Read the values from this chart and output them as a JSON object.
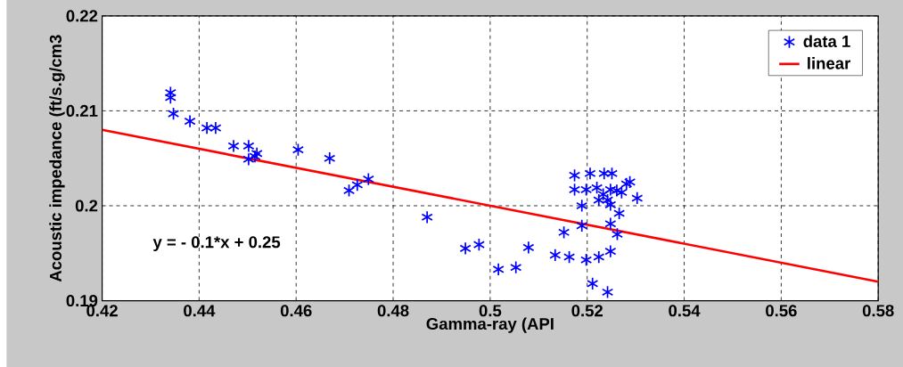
{
  "chart_data": {
    "type": "scatter",
    "xlabel": "Gamma-ray (API",
    "ylabel": "Acoustic impedance (ft/s.g/cm3",
    "xlim": [
      0.42,
      0.58
    ],
    "ylim": [
      0.19,
      0.22
    ],
    "xticks": [
      0.42,
      0.44,
      0.46,
      0.48,
      0.5,
      0.52,
      0.54,
      0.56,
      0.58
    ],
    "yticks": [
      0.19,
      0.2,
      0.21,
      0.22
    ],
    "grid": true,
    "legend": "top right",
    "annotations": [
      "y = - 0.1*x + 0.25"
    ],
    "series": [
      {
        "name": "data 1",
        "marker": "cross",
        "color": "#0000ff",
        "x": [
          0.4341,
          0.4341,
          0.4347,
          0.4381,
          0.4416,
          0.4434,
          0.4471,
          0.4502,
          0.4502,
          0.4515,
          0.4519,
          0.4604,
          0.4669,
          0.4709,
          0.4726,
          0.4749,
          0.487,
          0.4949,
          0.4977,
          0.5017,
          0.5053,
          0.5079,
          0.5134,
          0.5152,
          0.5163,
          0.5189,
          0.5198,
          0.5224,
          0.5248,
          0.5262,
          0.5211,
          0.5242,
          0.5174,
          0.5206,
          0.5235,
          0.5251,
          0.5174,
          0.5198,
          0.522,
          0.5248,
          0.5281,
          0.5288,
          0.5189,
          0.5224,
          0.5242,
          0.5248,
          0.5303,
          0.5266,
          0.5248,
          0.5233,
          0.5261,
          0.5271
        ],
        "values": [
          0.2119,
          0.2114,
          0.2097,
          0.2089,
          0.2082,
          0.2082,
          0.2063,
          0.2063,
          0.2049,
          0.2052,
          0.2055,
          0.2059,
          0.205,
          0.2016,
          0.2022,
          0.2028,
          0.1988,
          0.1955,
          0.1959,
          0.1933,
          0.1935,
          0.1956,
          0.1948,
          0.1972,
          0.1946,
          0.1979,
          0.1943,
          0.1946,
          0.1952,
          0.197,
          0.1918,
          0.1909,
          0.2032,
          0.2034,
          0.2034,
          0.2034,
          0.2017,
          0.2017,
          0.2019,
          0.2017,
          0.2023,
          0.2025,
          0.2,
          0.2006,
          0.2006,
          0.2001,
          0.2008,
          0.1992,
          0.1981,
          0.2012,
          0.2016,
          0.2014
        ]
      },
      {
        "name": "linear",
        "type": "line",
        "line_style": "solid",
        "color": "#ff0000",
        "x": [
          0.42,
          0.58
        ],
        "values": [
          0.208,
          0.192
        ]
      }
    ]
  }
}
